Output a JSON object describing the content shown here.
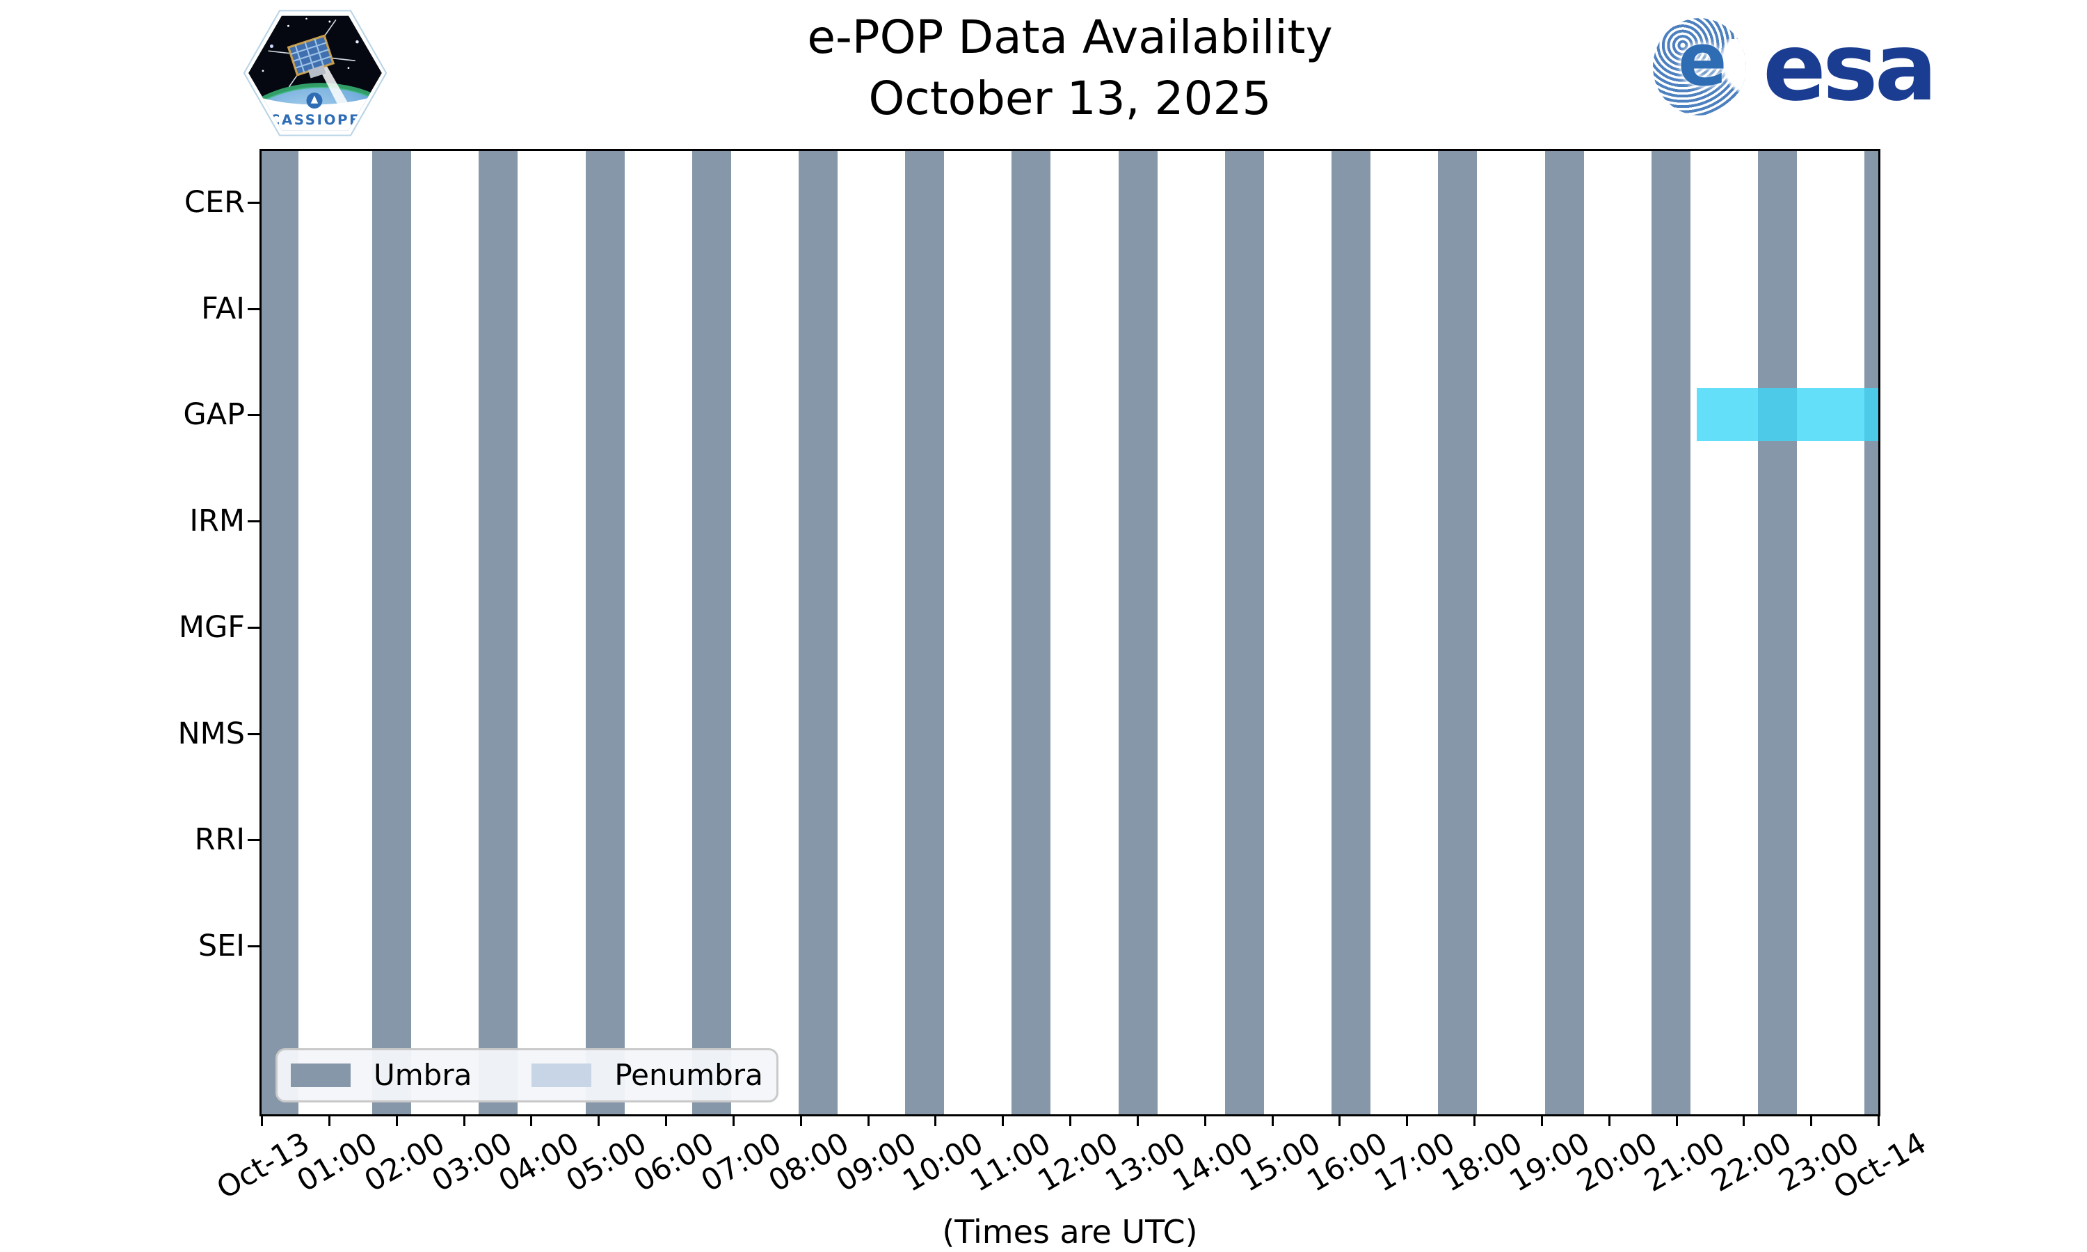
{
  "header": {
    "cassiope_label": "CASSIOPE",
    "esa_label": "esa",
    "esa_globe_letter": "e"
  },
  "chart_data": {
    "type": "timeline",
    "title": "e-POP Data Availability",
    "subtitle": "October 13, 2025",
    "xlabel": "(Times are UTC)",
    "x_range_hours": [
      0,
      24
    ],
    "x_tick_labels": [
      "Oct-13",
      "01:00",
      "02:00",
      "03:00",
      "04:00",
      "05:00",
      "06:00",
      "07:00",
      "08:00",
      "09:00",
      "10:00",
      "11:00",
      "12:00",
      "13:00",
      "14:00",
      "15:00",
      "16:00",
      "17:00",
      "18:00",
      "19:00",
      "20:00",
      "21:00",
      "22:00",
      "23:00",
      "Oct-14"
    ],
    "instruments": [
      "CER",
      "FAI",
      "GAP",
      "IRM",
      "MGF",
      "NMS",
      "RRI",
      "SEI"
    ],
    "umbra_intervals_hours": [
      [
        0.0,
        0.55
      ],
      [
        1.64,
        2.22
      ],
      [
        3.22,
        3.8
      ],
      [
        4.81,
        5.39
      ],
      [
        6.39,
        6.97
      ],
      [
        7.97,
        8.55
      ],
      [
        9.55,
        10.13
      ],
      [
        11.13,
        11.71
      ],
      [
        12.72,
        13.3
      ],
      [
        14.3,
        14.88
      ],
      [
        15.88,
        16.46
      ],
      [
        17.46,
        18.04
      ],
      [
        19.05,
        19.63
      ],
      [
        20.63,
        21.21
      ],
      [
        22.21,
        22.79
      ],
      [
        23.79,
        24.0
      ]
    ],
    "penumbra_intervals_hours": [],
    "availability": [
      {
        "instrument": "GAP",
        "start_hour": 21.3,
        "end_hour": 24.0
      }
    ],
    "legend": {
      "position": "lower left",
      "entries": [
        {
          "label": "Umbra",
          "color": "#8697aa"
        },
        {
          "label": "Penumbra",
          "color": "#c7d5e6"
        }
      ]
    },
    "colors": {
      "umbra": "#8697aa",
      "penumbra": "#c7d5e6",
      "availability": "#3dd7f8",
      "availability_opacity": 0.8,
      "esa_navy": "#1b3d91"
    },
    "grid": false
  }
}
